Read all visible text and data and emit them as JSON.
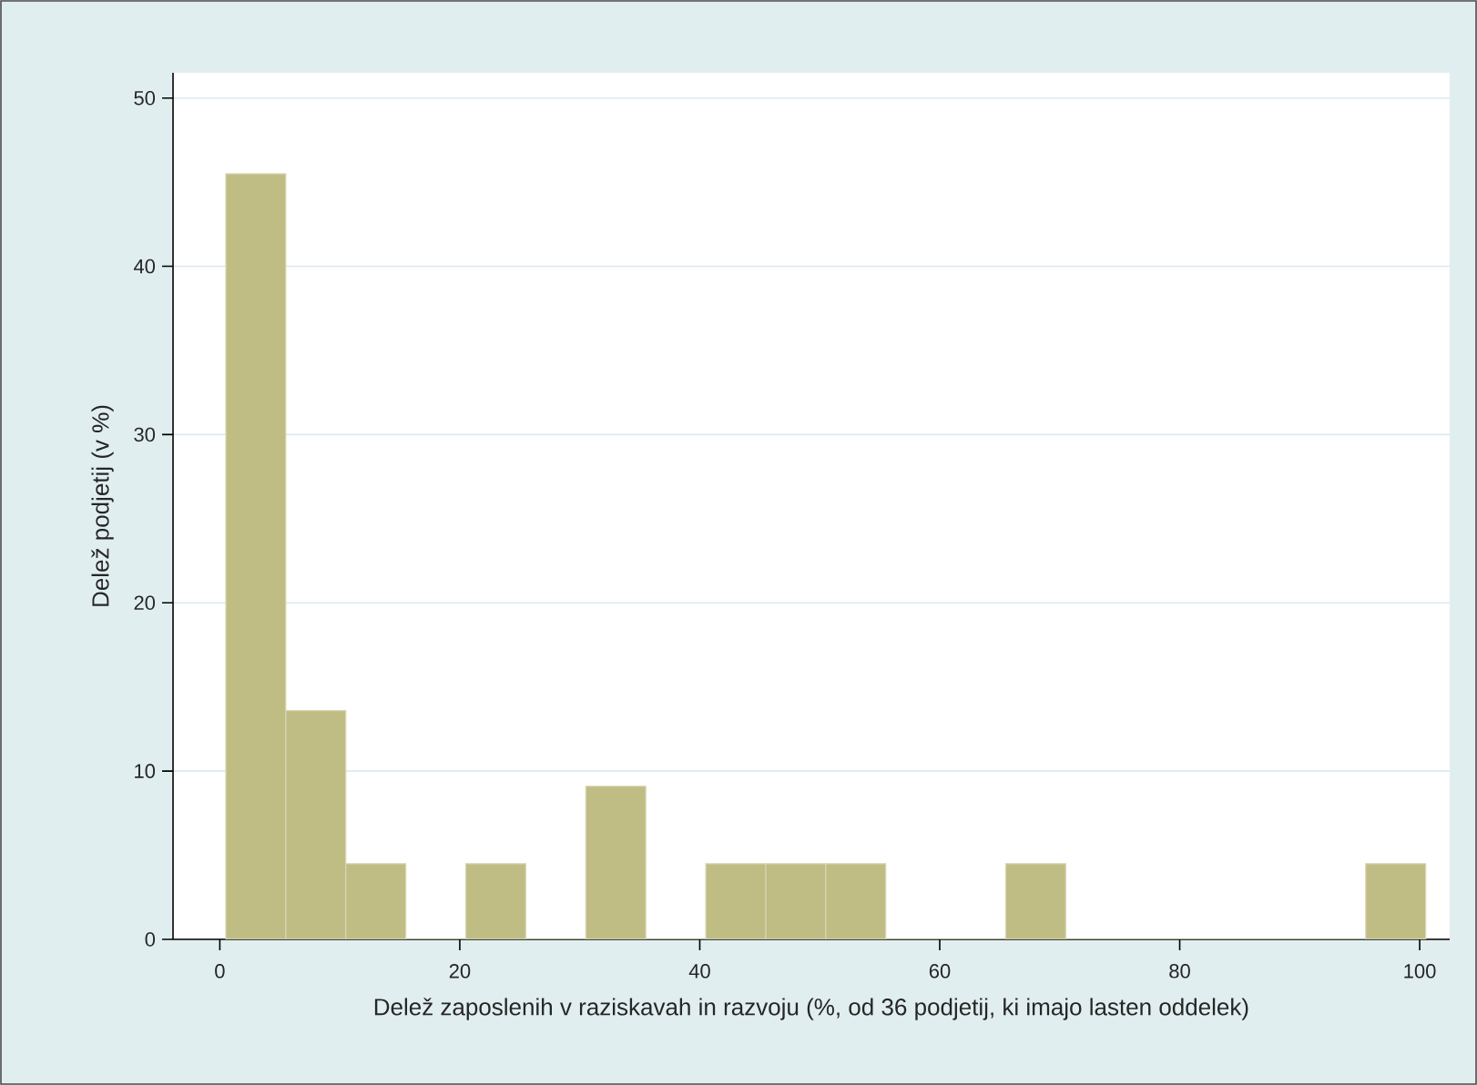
{
  "chart_data": {
    "type": "histogram",
    "xlabel": "Delež zaposlenih v raziskavah in razvoju (%, od 36 podjetij, ki imajo lasten oddelek)",
    "ylabel": "Delež podjetij (v %)",
    "bins": [
      0.5,
      5.5,
      10.5,
      15.5,
      20.5,
      25.5,
      30.5,
      35.5,
      40.5,
      45.5,
      50.5,
      55.5,
      60.5,
      65.5,
      70.5,
      75.5,
      80.5,
      85.5,
      90.5,
      95.5,
      100.5
    ],
    "values": [
      45.5,
      13.6,
      4.5,
      0,
      4.5,
      0,
      9.1,
      0,
      4.5,
      4.5,
      4.5,
      0,
      0,
      4.5,
      0,
      0,
      0,
      0,
      0,
      4.5
    ],
    "color": "#bfbd84",
    "xlim": [
      -3.9,
      102.5
    ],
    "ylim": [
      0,
      51.5
    ],
    "xticks": [
      0,
      20,
      40,
      60,
      80,
      100
    ],
    "yticks": [
      0,
      10,
      20,
      30,
      40,
      50
    ],
    "grid": "y"
  }
}
